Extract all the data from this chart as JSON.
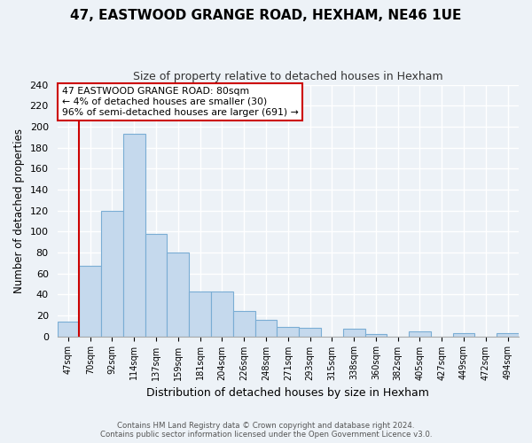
{
  "title": "47, EASTWOOD GRANGE ROAD, HEXHAM, NE46 1UE",
  "subtitle": "Size of property relative to detached houses in Hexham",
  "xlabel": "Distribution of detached houses by size in Hexham",
  "ylabel": "Number of detached properties",
  "bin_labels": [
    "47sqm",
    "70sqm",
    "92sqm",
    "114sqm",
    "137sqm",
    "159sqm",
    "181sqm",
    "204sqm",
    "226sqm",
    "248sqm",
    "271sqm",
    "293sqm",
    "315sqm",
    "338sqm",
    "360sqm",
    "382sqm",
    "405sqm",
    "427sqm",
    "449sqm",
    "472sqm",
    "494sqm"
  ],
  "bar_heights": [
    14,
    67,
    120,
    193,
    98,
    80,
    43,
    43,
    24,
    16,
    9,
    8,
    0,
    7,
    2,
    0,
    5,
    0,
    3,
    0,
    3
  ],
  "bar_color": "#c5d9ed",
  "bar_edge_color": "#7aadd4",
  "vline_color": "#cc0000",
  "ylim": [
    0,
    240
  ],
  "yticks": [
    0,
    20,
    40,
    60,
    80,
    100,
    120,
    140,
    160,
    180,
    200,
    220,
    240
  ],
  "annotation_line1": "47 EASTWOOD GRANGE ROAD: 80sqm",
  "annotation_line2": "← 4% of detached houses are smaller (30)",
  "annotation_line3": "96% of semi-detached houses are larger (691) →",
  "annotation_box_edge": "#cc0000",
  "footer_line1": "Contains HM Land Registry data © Crown copyright and database right 2024.",
  "footer_line2": "Contains public sector information licensed under the Open Government Licence v3.0.",
  "bg_color": "#edf2f7",
  "grid_color": "#d8e4f0"
}
